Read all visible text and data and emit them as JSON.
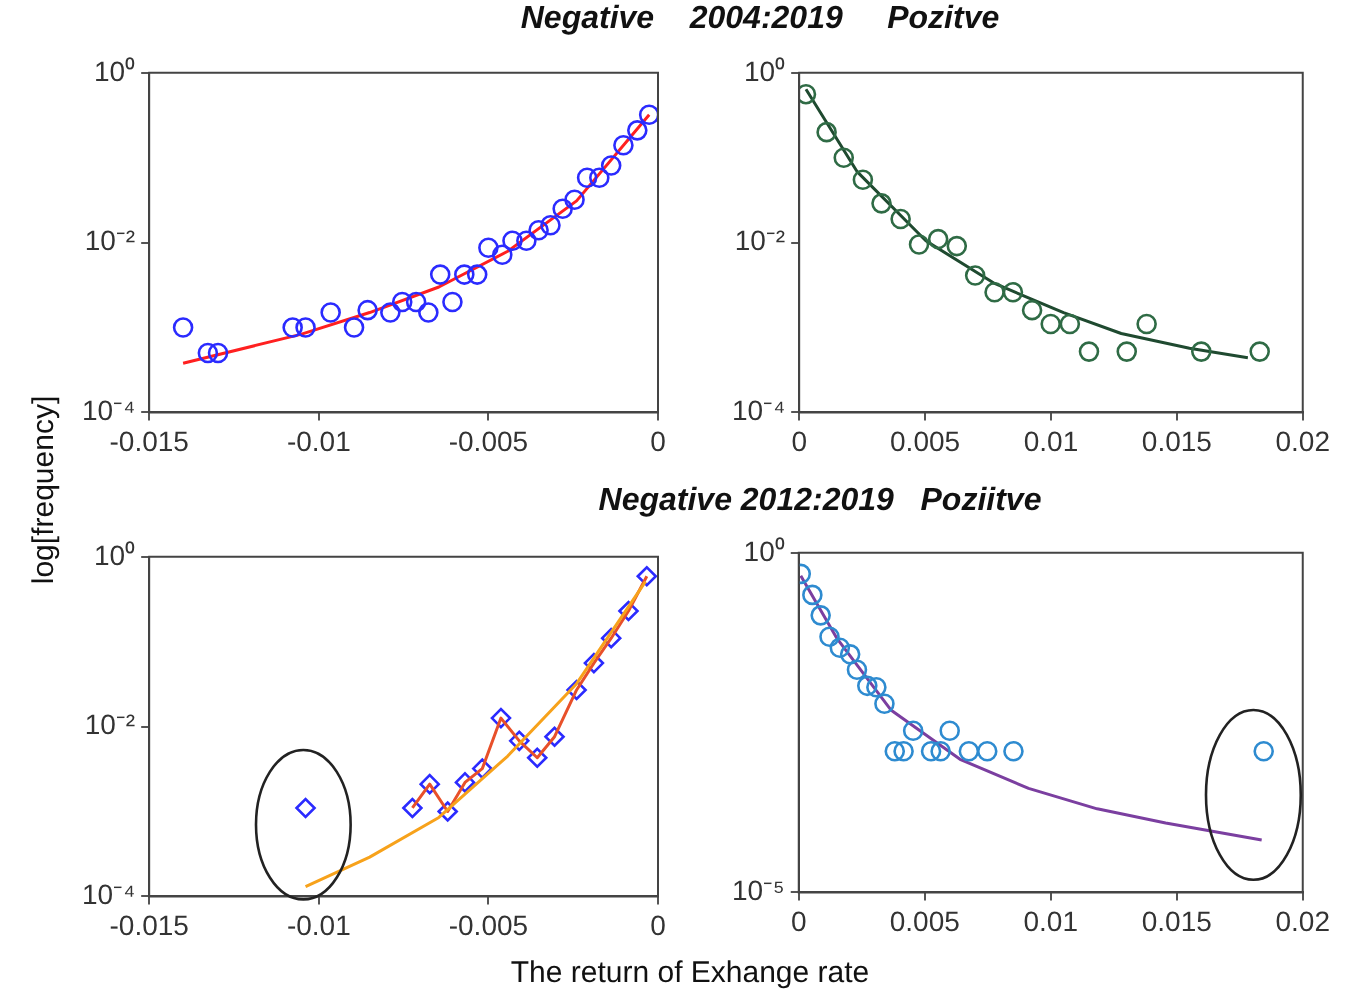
{
  "chart_data": [
    {
      "type": "scatter",
      "title": "Negative    2004:2019     Pozitve",
      "ylabel": "log[frequency]",
      "log": "y",
      "xlim": [
        -0.015,
        0
      ],
      "xticks": [
        -0.015,
        -0.01,
        -0.005,
        0
      ],
      "ylim": [
        0.0001,
        1
      ],
      "yticks": [
        {
          "value": 1,
          "label": "10⁰"
        },
        {
          "value": 0.01,
          "label": "10⁻²"
        },
        {
          "value": 0.0001,
          "label": "10⁻⁴"
        }
      ],
      "series": [
        {
          "type": "scatter",
          "marker": "circle",
          "color": "#2b2bff",
          "x": [
            -0.014,
            -0.01327,
            -0.01297,
            -0.01077,
            -0.01039,
            -0.00965,
            -0.00896,
            -0.00856,
            -0.00789,
            -0.00754,
            -0.00713,
            -0.00677,
            -0.00642,
            -0.00606,
            -0.00571,
            -0.00533,
            -0.005,
            -0.00459,
            -0.00429,
            -0.00388,
            -0.00352,
            -0.00317,
            -0.00281,
            -0.00246,
            -0.00209,
            -0.00173,
            -0.00138,
            -0.00102,
            -0.00061,
            -0.00026
          ],
          "values": [
            0.001,
            0.0005,
            0.0005,
            0.001,
            0.001,
            0.0015,
            0.001,
            0.0016,
            0.0015,
            0.002,
            0.002,
            0.0015,
            0.0042,
            0.002,
            0.0042,
            0.0042,
            0.0087,
            0.0072,
            0.0105,
            0.0105,
            0.014,
            0.016,
            0.025,
            0.032,
            0.058,
            0.058,
            0.081,
            0.14,
            0.21,
            0.32
          ]
        },
        {
          "type": "line",
          "marker": "none",
          "color": "#ff2020",
          "x": [
            -0.014,
            -0.01053,
            -0.0085,
            -0.00646,
            -0.00443,
            -0.0024,
            -0.00026
          ],
          "values": [
            0.00038,
            0.00083,
            0.0015,
            0.003,
            0.0079,
            0.031,
            0.32
          ]
        }
      ]
    },
    {
      "type": "scatter",
      "log": "y",
      "xlim": [
        0,
        0.02
      ],
      "xticks": [
        0,
        0.005,
        0.01,
        0.015,
        0.02
      ],
      "ylim": [
        0.0001,
        1
      ],
      "yticks": [
        {
          "value": 1,
          "label": "10⁰"
        },
        {
          "value": 0.01,
          "label": "10⁻²"
        },
        {
          "value": 0.0001,
          "label": "10⁻⁴"
        }
      ],
      "series": [
        {
          "type": "scatter",
          "marker": "circle",
          "color": "#2f6b45",
          "x": [
            0.00027,
            0.00109,
            0.00177,
            0.00253,
            0.00327,
            0.00403,
            0.00476,
            0.00552,
            0.00626,
            0.00699,
            0.00776,
            0.00849,
            0.00925,
            0.00999,
            0.01075,
            0.01151,
            0.01301,
            0.0138,
            0.01597,
            0.01829
          ],
          "values": [
            0.56,
            0.2,
            0.1,
            0.055,
            0.029,
            0.019,
            0.0095,
            0.011,
            0.0091,
            0.0041,
            0.0026,
            0.0026,
            0.0016,
            0.0011,
            0.0011,
            0.00052,
            0.00052,
            0.0011,
            0.00052,
            0.00052
          ]
        },
        {
          "type": "line",
          "marker": "none",
          "color": "#1f4a30",
          "x": [
            0.00027,
            0.00231,
            0.00503,
            0.00776,
            0.0105,
            0.01279,
            0.0155,
            0.01782
          ],
          "values": [
            0.64,
            0.068,
            0.0105,
            0.0033,
            0.0015,
            0.00085,
            0.00057,
            0.00044
          ]
        }
      ]
    },
    {
      "type": "scatter",
      "xlabel": "The return of Exhange rate",
      "log": "y",
      "xlim": [
        -0.015,
        0
      ],
      "xticks": [
        -0.015,
        -0.01,
        -0.005,
        0
      ],
      "ylim": [
        0.0001,
        1
      ],
      "yticks": [
        {
          "value": 1,
          "label": "10⁰"
        },
        {
          "value": 0.01,
          "label": "10⁻²"
        },
        {
          "value": 0.0001,
          "label": "10⁻⁴"
        }
      ],
      "series": [
        {
          "type": "line",
          "marker": "none",
          "color": "#f7a21b",
          "x": [
            -0.01039,
            -0.0085,
            -0.00646,
            -0.00443,
            -0.0024,
            -0.00037
          ],
          "values": [
            0.00013,
            0.00029,
            0.00085,
            0.0045,
            0.032,
            0.51
          ]
        },
        {
          "type": "line",
          "marker": "none",
          "color": "#e8502a",
          "x": [
            -0.00724,
            -0.00673,
            -0.0062,
            -0.00569,
            -0.00518,
            -0.00463,
            -0.00409,
            -0.00356,
            -0.00305,
            -0.0024,
            -0.00189,
            -0.00138,
            -0.00087,
            -0.00033
          ],
          "values": [
            0.0011,
            0.0021,
            0.001,
            0.0022,
            0.0032,
            0.0126,
            0.0068,
            0.0043,
            0.0076,
            0.027,
            0.056,
            0.11,
            0.23,
            0.59
          ]
        },
        {
          "type": "scatter",
          "marker": "diamond",
          "color": "#2b2bff",
          "x": [
            -0.01039,
            -0.00724,
            -0.00673,
            -0.0062,
            -0.00569,
            -0.00518,
            -0.00463,
            -0.00409,
            -0.00356,
            -0.00305,
            -0.0024,
            -0.00189,
            -0.00138,
            -0.00087,
            -0.00033
          ],
          "values": [
            0.0011,
            0.0011,
            0.0021,
            0.001,
            0.0022,
            0.0032,
            0.0126,
            0.0068,
            0.0043,
            0.0076,
            0.027,
            0.056,
            0.11,
            0.23,
            0.59
          ]
        }
      ]
    },
    {
      "type": "scatter",
      "title": "Negative 2012:2019   Poziitve",
      "log": "y",
      "xlim": [
        0,
        0.02
      ],
      "xticks": [
        0,
        0.005,
        0.01,
        0.015,
        0.02
      ],
      "ylim": [
        1e-05,
        1
      ],
      "yticks": [
        {
          "value": 1,
          "label": "10⁰"
        },
        {
          "value": 1e-05,
          "label": "10⁻⁵"
        }
      ],
      "series": [
        {
          "type": "scatter",
          "marker": "circle",
          "color": "#2e8bd0",
          "x": [
            8e-05,
            0.00054,
            0.00087,
            0.00122,
            0.00163,
            0.00204,
            0.00231,
            0.00272,
            0.00308,
            0.0034,
            0.00381,
            0.00416,
            0.00454,
            0.00525,
            0.00563,
            0.00599,
            0.00675,
            0.00748,
            0.00852,
            0.01845
          ],
          "values": [
            0.49,
            0.24,
            0.12,
            0.058,
            0.04,
            0.032,
            0.019,
            0.011,
            0.0105,
            0.006,
            0.0012,
            0.0012,
            0.0024,
            0.0012,
            0.0012,
            0.0024,
            0.0012,
            0.0012,
            0.0012,
            0.0012
          ]
        },
        {
          "type": "line",
          "marker": "none",
          "color": "#7b3fa0",
          "x": [
            8e-05,
            0.0015,
            0.00367,
            0.0064,
            0.00912,
            0.01184,
            0.01456,
            0.01837
          ],
          "values": [
            0.46,
            0.056,
            0.0048,
            0.00091,
            0.00034,
            0.00017,
            0.000105,
            5.9e-05
          ]
        }
      ]
    }
  ]
}
